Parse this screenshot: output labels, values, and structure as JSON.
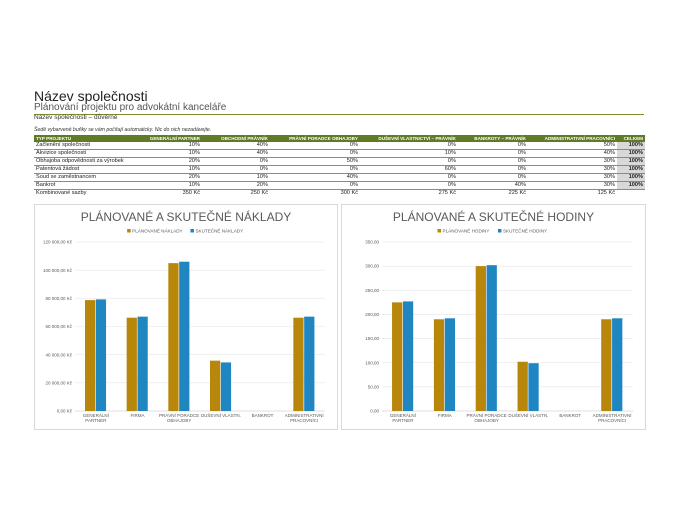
{
  "header": {
    "company": "Název společnosti",
    "subtitle": "Plánování projektu pro advokátní kanceláře",
    "confidential": "Název společnosti – důvěrné",
    "note": "Šedě vybarvené buňky se vám počítají automaticky. Nic do nich nezadávejte."
  },
  "table": {
    "headers": [
      "TYP PROJEKTU",
      "GENERÁLNÍ PARTNER",
      "OBCHODNÍ PRÁVNÍK",
      "PRÁVNÍ PORADCE OBHAJOBY",
      "DUŠEVNÍ VLASTNICTVÍ – PRÁVNÍK",
      "BANKROTY – PRÁVNÍK",
      "ADMINISTRATIVNÍ PRACOVNÍCI",
      "CELKEM"
    ],
    "rows": [
      [
        "Začlenění společnosti",
        "10%",
        "40%",
        "0%",
        "0%",
        "0%",
        "50%",
        "100%"
      ],
      [
        "Akvizice společnosti",
        "10%",
        "40%",
        "0%",
        "10%",
        "0%",
        "40%",
        "100%"
      ],
      [
        "Obhajoba odpovědnosti za výrobek",
        "20%",
        "0%",
        "50%",
        "0%",
        "0%",
        "30%",
        "100%"
      ],
      [
        "Patentová žádost",
        "10%",
        "0%",
        "0%",
        "60%",
        "0%",
        "30%",
        "100%"
      ],
      [
        "Soud se zaměstnancem",
        "20%",
        "10%",
        "40%",
        "0%",
        "0%",
        "30%",
        "100%"
      ],
      [
        "Bankrot",
        "10%",
        "20%",
        "0%",
        "0%",
        "40%",
        "30%",
        "100%"
      ]
    ],
    "summary": [
      "Kombinované sazby",
      "350 Kč",
      "250 Kč",
      "300 Kč",
      "275 Kč",
      "225 Kč",
      "125 Kč",
      ""
    ]
  },
  "chart_data": [
    {
      "type": "bar",
      "title": "PLÁNOVANÉ A SKUTEČNÉ NÁKLADY",
      "categories": [
        [
          "GENERÁLNÍ",
          "PARTNER"
        ],
        [
          "FIRMA"
        ],
        [
          "PRÁVNÍ PORADCE",
          "OBHAJOBY"
        ],
        [
          "DUŠEVNÍ VLASTN."
        ],
        [
          "BANKROT"
        ],
        [
          "ADMINISTRATIVNÍ",
          "PRACOVNÍCI"
        ]
      ],
      "series": [
        {
          "name": "PLÁNOVANÉ NÁKLADY",
          "color": "#b8860b",
          "values": [
            78750,
            66250,
            105000,
            35750,
            0,
            66250
          ]
        },
        {
          "name": "SKUTEČNÉ NÁKLADY",
          "color": "#1f86c1",
          "values": [
            79250,
            67000,
            106000,
            34500,
            0,
            67000
          ]
        }
      ],
      "ylim": [
        0,
        120000
      ],
      "yticks": [
        "0,00 Kč",
        "20 000,00 Kč",
        "40 000,00 Kč",
        "60 000,00 Kč",
        "80 000,00 Kč",
        "100 000,00 Kč",
        "120 000,00 Kč"
      ],
      "grid": true,
      "legend": "top"
    },
    {
      "type": "bar",
      "title": "PLÁNOVANÉ A SKUTEČNÉ HODINY",
      "categories": [
        [
          "GENERÁLNÍ",
          "PARTNER"
        ],
        [
          "FIRMA"
        ],
        [
          "PRÁVNÍ PORADCE",
          "OBHAJOBY"
        ],
        [
          "DUŠEVNÍ VLASTN."
        ],
        [
          "BANKROT"
        ],
        [
          "ADMINISTRATIVNÍ",
          "PRACOVNÍCI"
        ]
      ],
      "series": [
        {
          "name": "PLÁNOVANÉ HODINY",
          "color": "#b8860b",
          "values": [
            225,
            190,
            300,
            102,
            0,
            190
          ]
        },
        {
          "name": "SKUTEČNÉ HODINY",
          "color": "#1f86c1",
          "values": [
            227,
            192,
            302,
            99,
            0,
            192
          ]
        }
      ],
      "ylim": [
        0,
        350
      ],
      "yticks": [
        "0,00",
        "50,00",
        "100,00",
        "150,00",
        "200,00",
        "250,00",
        "300,00",
        "350,00"
      ],
      "grid": true,
      "legend": "top"
    }
  ]
}
